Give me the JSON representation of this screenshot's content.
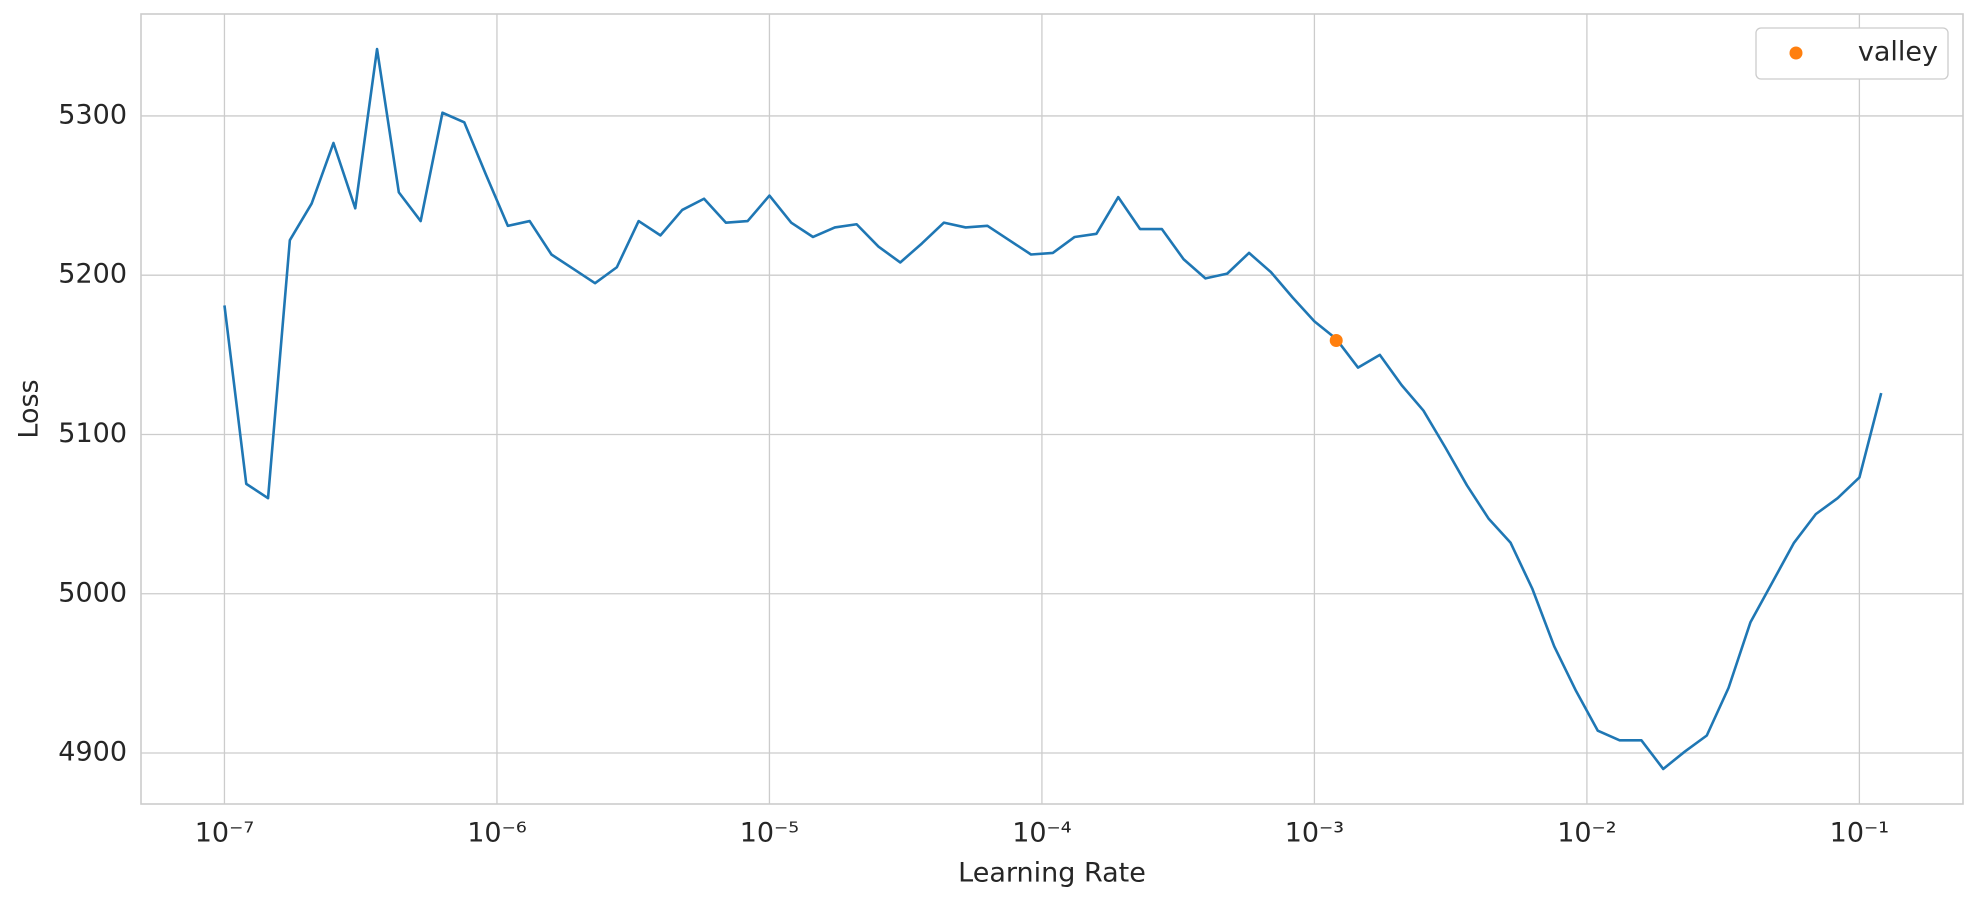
{
  "chart_data": {
    "type": "line",
    "x_label": "Learning Rate",
    "y_label": "Loss",
    "x_scale": "log",
    "grid": true,
    "legend": "upper right",
    "xlim": [
      4.94e-08,
      0.24
    ],
    "ylim": [
      4868,
      5364
    ],
    "xticks": [
      {
        "value": 1e-07,
        "label": "10⁻⁷"
      },
      {
        "value": 1e-06,
        "label": "10⁻⁶"
      },
      {
        "value": 1e-05,
        "label": "10⁻⁵"
      },
      {
        "value": 0.0001,
        "label": "10⁻⁴"
      },
      {
        "value": 0.001,
        "label": "10⁻³"
      },
      {
        "value": 0.01,
        "label": "10⁻²"
      },
      {
        "value": 0.1,
        "label": "10⁻¹"
      }
    ],
    "yticks": [
      4900,
      5000,
      5100,
      5200,
      5300
    ],
    "series": [
      {
        "style": "line",
        "color": "#1f77b4",
        "x": [
          1e-07,
          1.2023e-07,
          1.4454e-07,
          1.7378e-07,
          2.0893e-07,
          2.5119e-07,
          3.02e-07,
          3.6308e-07,
          4.3652e-07,
          5.2481e-07,
          6.3096e-07,
          7.5858e-07,
          9.1201e-07,
          1.0965e-06,
          1.3183e-06,
          1.5849e-06,
          1.9055e-06,
          2.2909e-06,
          2.7542e-06,
          3.3113e-06,
          3.9811e-06,
          4.7863e-06,
          5.7544e-06,
          6.9183e-06,
          8.3176e-06,
          1e-05,
          1.2023e-05,
          1.4454e-05,
          1.7378e-05,
          2.0893e-05,
          2.5119e-05,
          3.02e-05,
          3.6308e-05,
          4.3652e-05,
          5.2481e-05,
          6.3096e-05,
          7.5858e-05,
          9.1201e-05,
          0.00010965,
          0.00013183,
          0.00015849,
          0.00019055,
          0.00022909,
          0.00027542,
          0.00033113,
          0.00039811,
          0.00047863,
          0.00057544,
          0.00069183,
          0.00083176,
          0.001,
          0.0012023,
          0.0014454,
          0.0017378,
          0.0020893,
          0.0025119,
          0.00302,
          0.0036308,
          0.0043652,
          0.0052481,
          0.0063096,
          0.0075858,
          0.0091201,
          0.010965,
          0.013183,
          0.015849,
          0.019055,
          0.022909,
          0.027542,
          0.033113,
          0.039811,
          0.047863,
          0.057544,
          0.069183,
          0.083176,
          0.1,
          0.12023
        ],
        "values": [
          5181,
          5069,
          5060,
          5222,
          5245,
          5283,
          5242,
          5342,
          5252,
          5234,
          5302,
          5296,
          5263,
          5231,
          5234,
          5213,
          5204,
          5195,
          5205,
          5234,
          5225,
          5241,
          5248,
          5233,
          5234,
          5250,
          5233,
          5224,
          5230,
          5232,
          5218,
          5208,
          5220,
          5233,
          5230,
          5231,
          5222,
          5213,
          5214,
          5224,
          5226,
          5249,
          5229,
          5229,
          5210,
          5198,
          5201,
          5214,
          5202,
          5186,
          5171,
          5160,
          5142,
          5150,
          5131,
          5115,
          5092,
          5068,
          5047,
          5032,
          5003,
          4967,
          4939,
          4914,
          4908,
          4908,
          4890,
          4901,
          4911,
          4941,
          4982,
          5007,
          5032,
          5050,
          5060,
          5073,
          5126
        ]
      },
      {
        "style": "markers",
        "name": "valley",
        "color": "#ff7f0e",
        "x": [
          0.0012023
        ],
        "values": [
          5159
        ]
      }
    ]
  }
}
